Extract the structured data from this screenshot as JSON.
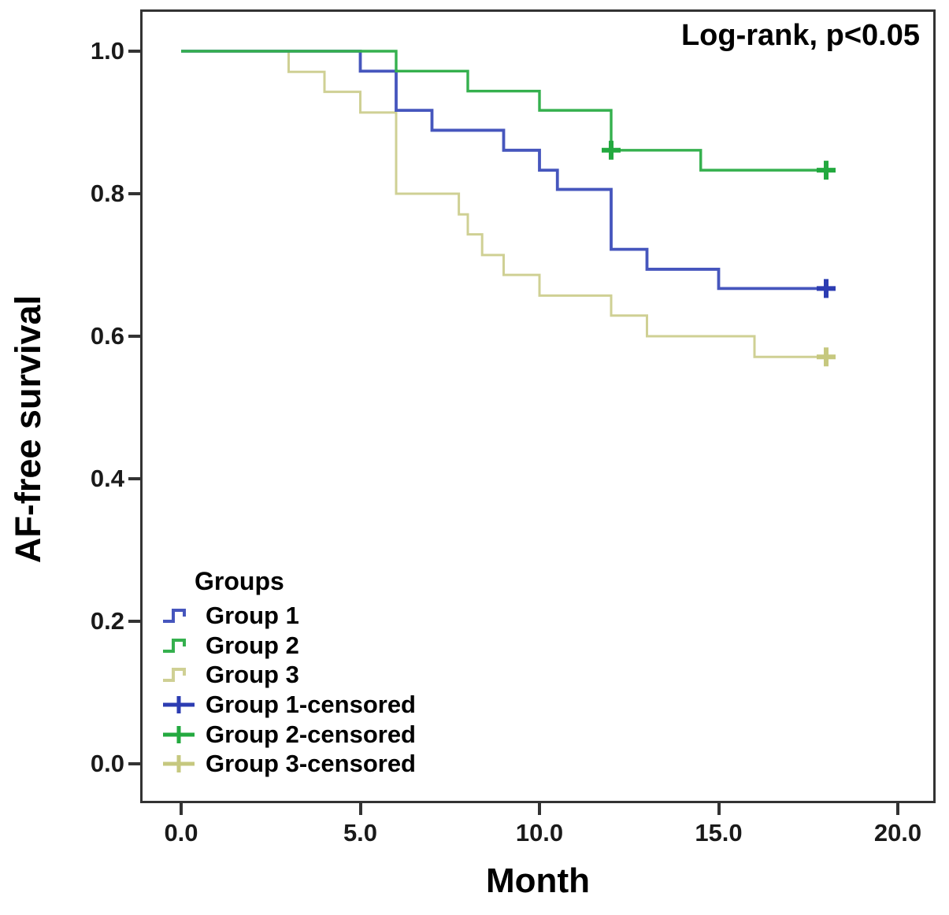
{
  "annotation": "Log-rank, p<0.05",
  "chart_data": {
    "type": "line",
    "step": true,
    "title": "",
    "xlabel": "Month",
    "ylabel": "AF-free survival",
    "xlim": [
      0,
      20
    ],
    "ylim": [
      0.0,
      1.0
    ],
    "grid": false,
    "legend_position": "inside-bottom-left",
    "annotation": "Log-rank, p<0.05",
    "x_ticks": [
      {
        "value": 0,
        "label": "0.0"
      },
      {
        "value": 5,
        "label": "5.0"
      },
      {
        "value": 10,
        "label": "10.0"
      },
      {
        "value": 15,
        "label": "15.0"
      },
      {
        "value": 20,
        "label": "20.0"
      }
    ],
    "y_ticks": [
      {
        "value": 1.0,
        "label": "1.0"
      },
      {
        "value": 0.8,
        "label": "0.8"
      },
      {
        "value": 0.6,
        "label": "0.6"
      },
      {
        "value": 0.4,
        "label": "0.4"
      },
      {
        "value": 0.2,
        "label": "0.2"
      },
      {
        "value": 0.0,
        "label": "0.0"
      }
    ],
    "legend": {
      "title": "Groups",
      "entries": [
        {
          "label": "Group 1",
          "type": "line",
          "series": 0
        },
        {
          "label": "Group 2",
          "type": "line",
          "series": 1
        },
        {
          "label": "Group 3",
          "type": "line",
          "series": 2
        },
        {
          "label": "Group 1-censored",
          "type": "censor",
          "series": 0
        },
        {
          "label": "Group 2-censored",
          "type": "censor",
          "series": 1
        },
        {
          "label": "Group 3-censored",
          "type": "censor",
          "series": 2
        }
      ]
    },
    "series": [
      {
        "name": "Group 1",
        "color": "#4656bd",
        "censor_color": "#2c3cb2",
        "steps": [
          [
            0,
            1.0
          ],
          [
            5,
            0.972
          ],
          [
            6,
            0.917
          ],
          [
            7,
            0.889
          ],
          [
            9,
            0.861
          ],
          [
            10,
            0.833
          ],
          [
            10.5,
            0.806
          ],
          [
            12,
            0.722
          ],
          [
            13,
            0.694
          ],
          [
            15,
            0.667
          ]
        ],
        "end_month": 18.1,
        "censored": [
          [
            18,
            0.667
          ]
        ]
      },
      {
        "name": "Group 2",
        "color": "#35b04e",
        "censor_color": "#23a93f",
        "steps": [
          [
            0,
            1.0
          ],
          [
            6,
            0.972
          ],
          [
            8,
            0.944
          ],
          [
            10,
            0.917
          ],
          [
            12,
            0.861
          ],
          [
            14.5,
            0.833
          ]
        ],
        "end_month": 18.1,
        "censored": [
          [
            12,
            0.861
          ],
          [
            18,
            0.833
          ]
        ]
      },
      {
        "name": "Group 3",
        "color": "#cfd094",
        "censor_color": "#c6c87f",
        "steps": [
          [
            0,
            1.0
          ],
          [
            3,
            0.971
          ],
          [
            4,
            0.943
          ],
          [
            5,
            0.914
          ],
          [
            6,
            0.8
          ],
          [
            7.75,
            0.771
          ],
          [
            8,
            0.743
          ],
          [
            8.4,
            0.714
          ],
          [
            9,
            0.686
          ],
          [
            10,
            0.657
          ],
          [
            12,
            0.629
          ],
          [
            13,
            0.6
          ],
          [
            16,
            0.571
          ]
        ],
        "end_month": 18.1,
        "censored": [
          [
            18,
            0.571
          ]
        ]
      }
    ]
  }
}
